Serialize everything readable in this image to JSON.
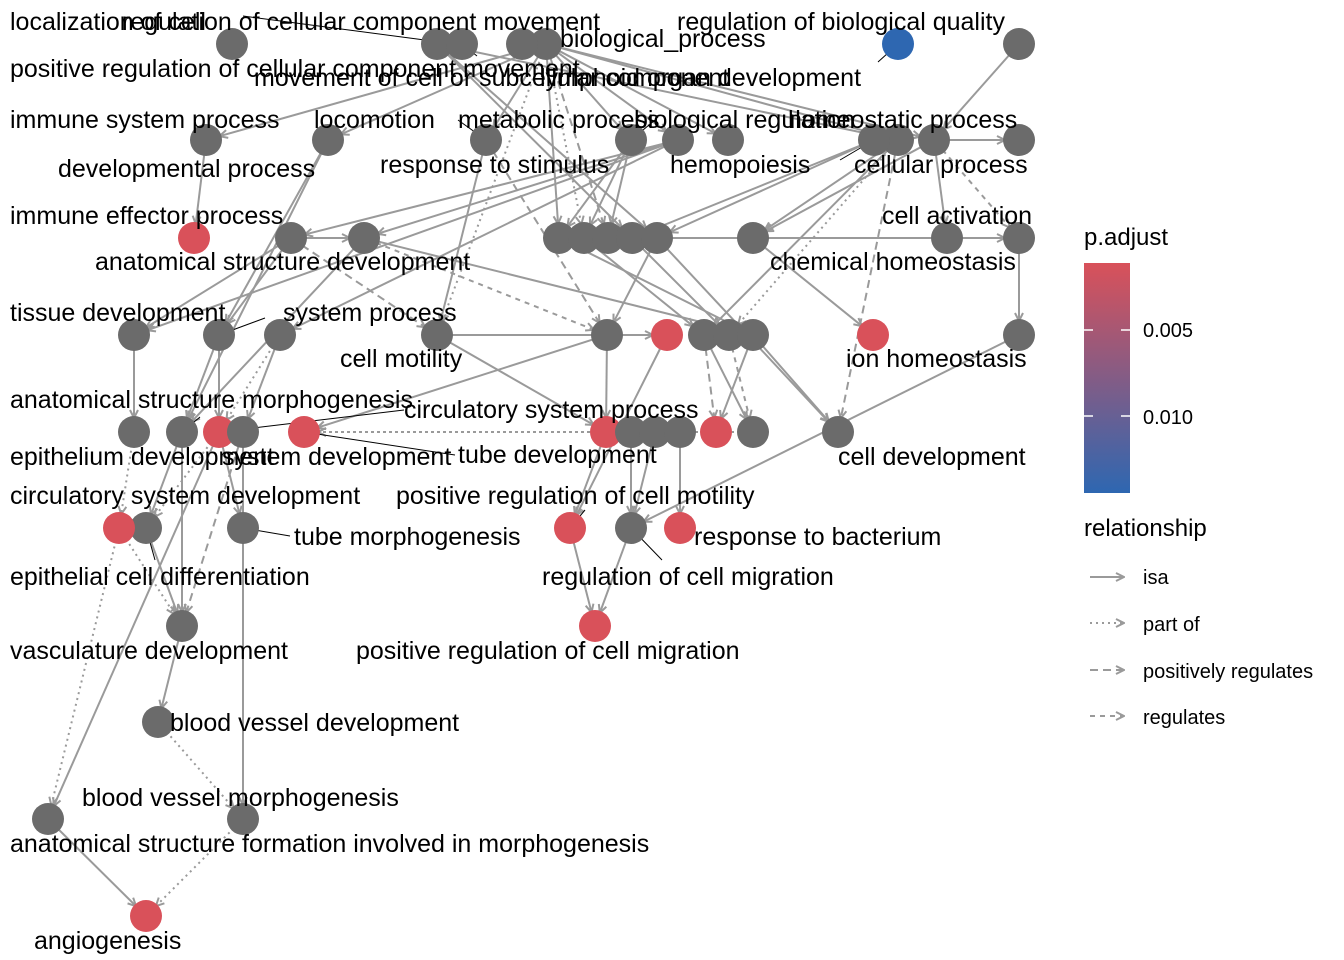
{
  "nodes": [
    {
      "id": "biological_process",
      "label": "biological_process",
      "significant": false
    },
    {
      "id": "regulation_of_biological_quality",
      "label": "regulation of biological quality",
      "significant": false
    },
    {
      "id": "localization_of_cell",
      "label": "localization of cell",
      "significant": false
    },
    {
      "id": "regulation_of_cellular_component_movement",
      "label": "regulation of cellular component movement",
      "significant": false
    },
    {
      "id": "positive_regulation_of_cellular_component_movement",
      "label": "positive regulation of cellular component movement",
      "significant": false
    },
    {
      "id": "movement_of_cell_or_subcellular_component",
      "label": "movement of cell or subcellular component",
      "significant": false
    },
    {
      "id": "lymphoid_organ_development",
      "label": "lymphoid organ development",
      "significant": false,
      "padj": 0.0125
    },
    {
      "id": "immune_system_process",
      "label": "immune system process",
      "significant": false
    },
    {
      "id": "locomotion",
      "label": "locomotion",
      "significant": false
    },
    {
      "id": "metabolic_process",
      "label": "metabolic process",
      "significant": false
    },
    {
      "id": "biological_regulation",
      "label": "biological regulation",
      "significant": false
    },
    {
      "id": "homeostatic_process",
      "label": "homeostatic process",
      "significant": false
    },
    {
      "id": "developmental_process",
      "label": "developmental process",
      "significant": false
    },
    {
      "id": "response_to_stimulus",
      "label": "response to stimulus",
      "significant": false
    },
    {
      "id": "hemopoiesis",
      "label": "hemopoiesis",
      "significant": false
    },
    {
      "id": "cellular_process",
      "label": "cellular process",
      "significant": false
    },
    {
      "id": "immune_effector_process",
      "label": "immune effector process",
      "significant": true
    },
    {
      "id": "cell_activation",
      "label": "cell activation",
      "significant": false
    },
    {
      "id": "anatomical_structure_development",
      "label": "anatomical structure development",
      "significant": false
    },
    {
      "id": "chemical_homeostasis",
      "label": "chemical homeostasis",
      "significant": false
    },
    {
      "id": "tissue_development",
      "label": "tissue development",
      "significant": false
    },
    {
      "id": "system_process",
      "label": "system process",
      "significant": false
    },
    {
      "id": "cell_motility",
      "label": "cell motility",
      "significant": false
    },
    {
      "id": "ion_homeostasis",
      "label": "ion homeostasis",
      "significant": true
    },
    {
      "id": "anatomical_structure_morphogenesis",
      "label": "anatomical structure morphogenesis",
      "significant": false
    },
    {
      "id": "circulatory_system_process",
      "label": "circulatory system process",
      "significant": true
    },
    {
      "id": "epithelium_development",
      "label": "epithelium development",
      "significant": false
    },
    {
      "id": "system_development",
      "label": "system development",
      "significant": true
    },
    {
      "id": "tube_development",
      "label": "tube development",
      "significant": false
    },
    {
      "id": "cell_development",
      "label": "cell development",
      "significant": false
    },
    {
      "id": "circulatory_system_development",
      "label": "circulatory system development",
      "significant": false
    },
    {
      "id": "positive_regulation_of_cell_motility",
      "label": "positive regulation of cell motility",
      "significant": true
    },
    {
      "id": "tube_morphogenesis",
      "label": "tube morphogenesis",
      "significant": false
    },
    {
      "id": "response_to_bacterium",
      "label": "response to bacterium",
      "significant": true
    },
    {
      "id": "epithelial_cell_differentiation",
      "label": "epithelial cell differentiation",
      "significant": true
    },
    {
      "id": "regulation_of_cell_migration",
      "label": "regulation of cell migration",
      "significant": false
    },
    {
      "id": "vasculature_development",
      "label": "vasculature development",
      "significant": false
    },
    {
      "id": "positive_regulation_of_cell_migration",
      "label": "positive regulation of cell migration",
      "significant": true
    },
    {
      "id": "blood_vessel_development",
      "label": "blood vessel development",
      "significant": false
    },
    {
      "id": "blood_vessel_morphogenesis",
      "label": "blood vessel morphogenesis",
      "significant": false
    },
    {
      "id": "anatomical_structure_formation_involved_in_morphogenesis",
      "label": "anatomical structure formation involved in morphogenesis",
      "significant": false
    },
    {
      "id": "angiogenesis",
      "label": "angiogenesis",
      "significant": true
    },
    {
      "id": "unlabeled_1",
      "label": "",
      "significant": false
    },
    {
      "id": "unlabeled_2",
      "label": "",
      "significant": false
    },
    {
      "id": "unlabeled_3",
      "label": "",
      "significant": false
    },
    {
      "id": "unlabeled_4",
      "label": "",
      "significant": false
    },
    {
      "id": "unlabeled_5",
      "label": "",
      "significant": false
    },
    {
      "id": "unlabeled_6",
      "label": "",
      "significant": false
    },
    {
      "id": "unlabeled_7",
      "label": "",
      "significant": false
    },
    {
      "id": "unlabeled_8",
      "label": "",
      "significant": false
    },
    {
      "id": "unlabeled_9",
      "label": "",
      "significant": false
    },
    {
      "id": "unlabeled_10",
      "label": "",
      "significant": false
    },
    {
      "id": "unlabeled_11",
      "label": "",
      "significant": false
    },
    {
      "id": "unlabeled_12",
      "label": "",
      "significant": false
    },
    {
      "id": "unlabeled_13",
      "label": "",
      "significant": false
    },
    {
      "id": "unlabeled_14",
      "label": "",
      "significant": true
    },
    {
      "id": "unlabeled_15",
      "label": "",
      "significant": true
    },
    {
      "id": "unlabeled_16",
      "label": "",
      "significant": true
    },
    {
      "id": "unlabeled_17",
      "label": "",
      "significant": false
    },
    {
      "id": "unlabeled_18",
      "label": "",
      "significant": false
    },
    {
      "id": "unlabeled_19",
      "label": "",
      "significant": false
    },
    {
      "id": "unlabeled_20",
      "label": "",
      "significant": false
    },
    {
      "id": "unlabeled_21",
      "label": "",
      "significant": false
    }
  ],
  "edges": [
    {
      "from": "biological_process",
      "to": "developmental_process",
      "type": "isa"
    },
    {
      "from": "biological_process",
      "to": "locomotion",
      "type": "isa"
    },
    {
      "from": "biological_process",
      "to": "immune_system_process",
      "type": "isa"
    },
    {
      "from": "biological_process",
      "to": "metabolic_process",
      "type": "isa"
    },
    {
      "from": "biological_process",
      "to": "biological_regulation",
      "type": "isa"
    },
    {
      "from": "biological_process",
      "to": "cellular_process",
      "type": "isa"
    },
    {
      "from": "biological_process",
      "to": "homeostatic_process",
      "type": "isa"
    },
    {
      "from": "biological_process",
      "to": "response_to_stimulus",
      "type": "isa"
    },
    {
      "from": "biological_process",
      "to": "unlabeled_2",
      "type": "isa"
    },
    {
      "from": "biological_process",
      "to": "unlabeled_3",
      "type": "part of"
    },
    {
      "from": "biological_process",
      "to": "unlabeled_4",
      "type": "positively regulates"
    },
    {
      "from": "biological_process",
      "to": "cell_motility",
      "type": "part of"
    },
    {
      "from": "regulation_of_cellular_component_movement",
      "to": "unlabeled_5",
      "type": "isa"
    },
    {
      "from": "regulation_of_cellular_component_movement",
      "to": "unlabeled_6",
      "type": "isa"
    },
    {
      "from": "regulation_of_cellular_component_movement",
      "to": "homeostatic_process",
      "type": "isa"
    },
    {
      "from": "regulation_of_biological_quality",
      "to": "cellular_process",
      "type": "isa"
    },
    {
      "from": "immune_system_process",
      "to": "immune_effector_process",
      "type": "isa"
    },
    {
      "from": "developmental_process",
      "to": "anatomical_structure_development",
      "type": "isa"
    },
    {
      "from": "developmental_process",
      "to": "unlabeled_1",
      "type": "isa"
    },
    {
      "from": "developmental_process",
      "to": "tissue_development",
      "type": "isa"
    },
    {
      "from": "developmental_process",
      "to": "unlabeled_7",
      "type": "isa"
    },
    {
      "from": "locomotion",
      "to": "system_process",
      "type": "isa"
    },
    {
      "from": "locomotion",
      "to": "anatomical_structure_morphogenesis",
      "type": "isa"
    },
    {
      "from": "metabolic_process",
      "to": "cell_motility",
      "type": "isa"
    },
    {
      "from": "metabolic_process",
      "to": "unlabeled_8",
      "type": "positively regulates"
    },
    {
      "from": "biological_regulation",
      "to": "unlabeled_2",
      "type": "isa"
    },
    {
      "from": "biological_regulation",
      "to": "unlabeled_3",
      "type": "isa"
    },
    {
      "from": "biological_regulation",
      "to": "unlabeled_4",
      "type": "isa"
    },
    {
      "from": "hemopoiesis",
      "to": "unlabeled_5",
      "type": "isa"
    },
    {
      "from": "hemopoiesis",
      "to": "unlabeled_6",
      "type": "isa"
    },
    {
      "from": "cellular_process",
      "to": "cell_activation",
      "type": "isa"
    },
    {
      "from": "cellular_process",
      "to": "unlabeled_10",
      "type": "isa"
    },
    {
      "from": "cellular_process",
      "to": "chemical_homeostasis",
      "type": "isa"
    },
    {
      "from": "cellular_process",
      "to": "unlabeled_11",
      "type": "regulates"
    },
    {
      "from": "homeostatic_process",
      "to": "chemical_homeostasis",
      "type": "isa"
    },
    {
      "from": "homeostatic_process",
      "to": "unlabeled_9",
      "type": "isa"
    },
    {
      "from": "homeostatic_process",
      "to": "unlabeled_12",
      "type": "part of"
    },
    {
      "from": "homeostatic_process",
      "to": "cell_development",
      "type": "positively regulates"
    },
    {
      "from": "chemical_homeostasis",
      "to": "ion_homeostasis",
      "type": "isa"
    },
    {
      "from": "anatomical_structure_development",
      "to": "tissue_development",
      "type": "isa"
    },
    {
      "from": "anatomical_structure_development",
      "to": "system_process",
      "type": "isa"
    },
    {
      "from": "anatomical_structure_development",
      "to": "cell_motility",
      "type": "positively regulates"
    },
    {
      "from": "anatomical_structure_development",
      "to": "unlabeled_1",
      "type": "isa"
    },
    {
      "from": "unlabeled_1",
      "to": "unlabeled_13",
      "type": "isa"
    },
    {
      "from": "unlabeled_1",
      "to": "unlabeled_8",
      "type": "regulates"
    },
    {
      "from": "unlabeled_1",
      "to": "anatomical_structure_morphogenesis",
      "type": "isa"
    },
    {
      "from": "unlabeled_2",
      "to": "unlabeled_13",
      "type": "isa"
    },
    {
      "from": "unlabeled_3",
      "to": "unlabeled_9",
      "type": "isa"
    },
    {
      "from": "unlabeled_4",
      "to": "unlabeled_11",
      "type": "isa"
    },
    {
      "from": "unlabeled_5",
      "to": "unlabeled_12",
      "type": "isa"
    },
    {
      "from": "unlabeled_6",
      "to": "unlabeled_8",
      "type": "isa"
    },
    {
      "from": "unlabeled_6",
      "to": "cell_development",
      "type": "isa"
    },
    {
      "from": "tissue_development",
      "to": "epithelium_development",
      "type": "isa"
    },
    {
      "from": "system_process",
      "to": "anatomical_structure_morphogenesis",
      "type": "isa"
    },
    {
      "from": "system_process",
      "to": "system_development",
      "type": "isa"
    },
    {
      "from": "unlabeled_7",
      "to": "tube_development",
      "type": "isa"
    },
    {
      "from": "unlabeled_7",
      "to": "system_development",
      "type": "part of"
    },
    {
      "from": "cell_motility",
      "to": "unlabeled_14",
      "type": "isa"
    },
    {
      "from": "cell_motility",
      "to": "circulatory_system_process",
      "type": "isa"
    },
    {
      "from": "unlabeled_8",
      "to": "circulatory_system_process",
      "type": "isa"
    },
    {
      "from": "unlabeled_8",
      "to": "unlabeled_15",
      "type": "isa"
    },
    {
      "from": "unlabeled_13",
      "to": "unlabeled_16",
      "type": "isa"
    },
    {
      "from": "unlabeled_13",
      "to": "cell_development",
      "type": "isa"
    },
    {
      "from": "unlabeled_9",
      "to": "unlabeled_16",
      "type": "positively regulates"
    },
    {
      "from": "unlabeled_9",
      "to": "unlabeled_17",
      "type": "isa"
    },
    {
      "from": "unlabeled_11",
      "to": "unlabeled_18",
      "type": "isa"
    },
    {
      "from": "unlabeled_12",
      "to": "unlabeled_17",
      "type": "regulates"
    },
    {
      "from": "epithelium_development",
      "to": "epithelial_cell_differentiation",
      "type": "part of"
    },
    {
      "from": "anatomical_structure_morphogenesis",
      "to": "circulatory_system_development",
      "type": "isa"
    },
    {
      "from": "anatomical_structure_morphogenesis",
      "to": "vasculature_development",
      "type": "isa"
    },
    {
      "from": "system_development",
      "to": "tube_morphogenesis",
      "type": "isa"
    },
    {
      "from": "system_development",
      "to": "circulatory_system_development",
      "type": "part of"
    },
    {
      "from": "system_development",
      "to": "anatomical_structure_formation_involved_in_morphogenesis",
      "type": "isa"
    },
    {
      "from": "tube_development",
      "to": "blood_vessel_morphogenesis",
      "type": "isa"
    },
    {
      "from": "tube_development",
      "to": "vasculature_development",
      "type": "positively regulates"
    },
    {
      "from": "unlabeled_14",
      "to": "positive_regulation_of_cell_motility",
      "type": "isa"
    },
    {
      "from": "circulatory_system_process",
      "to": "positive_regulation_of_cell_motility",
      "type": "isa"
    },
    {
      "from": "unlabeled_19",
      "to": "regulation_of_cell_migration",
      "type": "isa"
    },
    {
      "from": "unlabeled_20",
      "to": "regulation_of_cell_migration",
      "type": "isa"
    },
    {
      "from": "unlabeled_21",
      "to": "response_to_bacterium",
      "type": "isa"
    },
    {
      "from": "unlabeled_18",
      "to": "regulation_of_cell_migration",
      "type": "isa"
    },
    {
      "from": "circulatory_system_development",
      "to": "vasculature_development",
      "type": "isa"
    },
    {
      "from": "epithelial_cell_differentiation",
      "to": "vasculature_development",
      "type": "part of"
    },
    {
      "from": "epithelial_cell_differentiation",
      "to": "anatomical_structure_formation_involved_in_morphogenesis",
      "type": "part of"
    },
    {
      "from": "positive_regulation_of_cell_motility",
      "to": "positive_regulation_of_cell_migration",
      "type": "isa"
    },
    {
      "from": "regulation_of_cell_migration",
      "to": "positive_regulation_of_cell_migration",
      "type": "isa"
    },
    {
      "from": "vasculature_development",
      "to": "blood_vessel_development",
      "type": "isa"
    },
    {
      "from": "blood_vessel_development",
      "to": "blood_vessel_morphogenesis",
      "type": "part of"
    },
    {
      "from": "blood_vessel_morphogenesis",
      "to": "angiogenesis",
      "type": "part of"
    },
    {
      "from": "anatomical_structure_formation_involved_in_morphogenesis",
      "to": "angiogenesis",
      "type": "isa"
    },
    {
      "from": "unlabeled_17",
      "to": "unlabeled_15",
      "type": "part of"
    },
    {
      "from": "unlabeled_16",
      "to": "unlabeled_15",
      "type": "part of"
    }
  ],
  "legend": {
    "color_title": "p.adjust",
    "color_ticks": [
      {
        "label": "0.005",
        "value": 0.005
      },
      {
        "label": "0.010",
        "value": 0.01
      }
    ],
    "color_domain": [
      0.0005,
      0.0125
    ],
    "color_low": "#d9515a",
    "color_high": "#2e67b1",
    "relationship_title": "relationship",
    "relationships": [
      {
        "label": "isa",
        "dash": "solid"
      },
      {
        "label": "part of",
        "dash": "dotted"
      },
      {
        "label": "positively regulates",
        "dash": "dashed"
      },
      {
        "label": "regulates",
        "dash": "dashed"
      }
    ]
  },
  "colors": {
    "node_default": "#6b6b6b",
    "node_significant": "#d9515a",
    "edge": "#9a9a9a"
  }
}
